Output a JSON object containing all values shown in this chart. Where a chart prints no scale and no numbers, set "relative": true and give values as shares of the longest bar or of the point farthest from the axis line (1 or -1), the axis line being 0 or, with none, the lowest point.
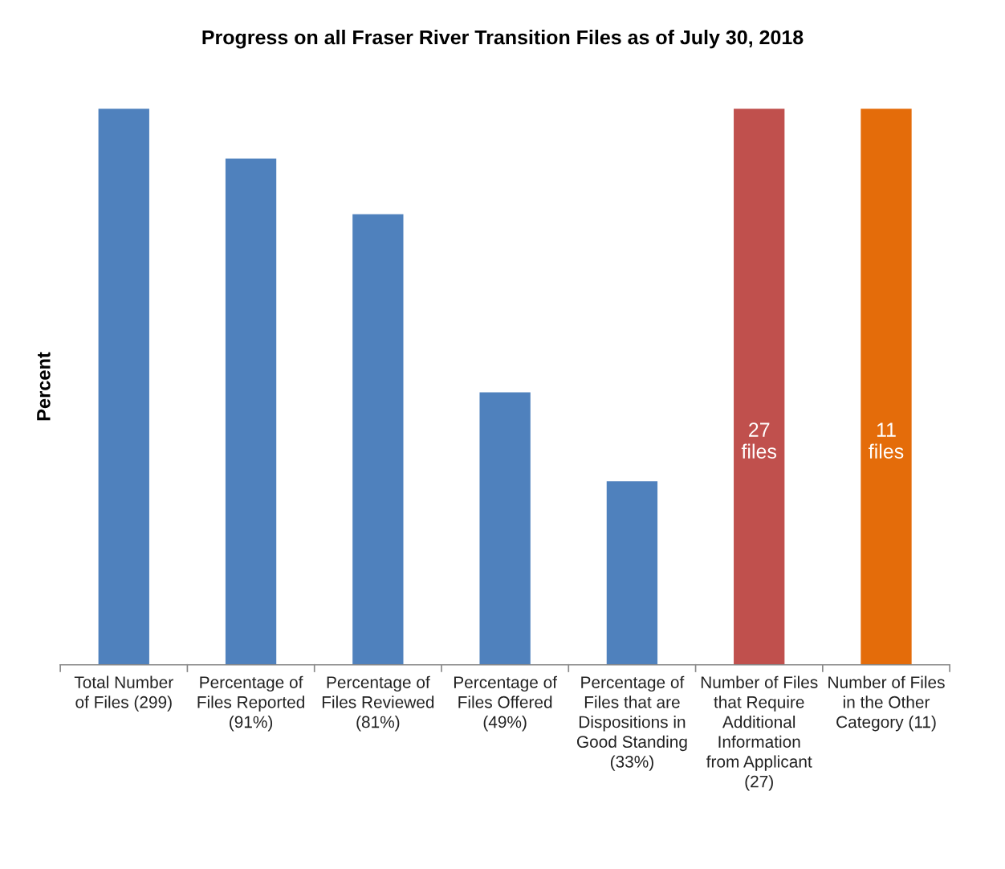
{
  "chart_data": {
    "type": "bar",
    "title": "Progress on all Fraser River Transition Files as of July 30, 2018",
    "ylabel": "Percent",
    "categories": [
      "Total Number\nof Files (299)",
      "Percentage of\nFiles Reported\n(91%)",
      "Percentage of\nFiles Reviewed\n(81%)",
      "Percentage of\nFiles Offered\n(49%)",
      "Percentage of\nFiles that are\nDispositions in\nGood Standing\n(33%)",
      "Number of Files\nthat Require\nAdditional\nInformation\nfrom Applicant\n(27)",
      "Number of Files\nin the Other\nCategory (11)"
    ],
    "values": [
      1,
      0.91,
      0.81,
      0.49,
      0.33,
      1,
      1
    ],
    "colors": [
      "#4f81bd",
      "#4f81bd",
      "#4f81bd",
      "#4f81bd",
      "#4f81bd",
      "#c0504d",
      "#e46c0a"
    ],
    "annotations": [
      "27\nfiles",
      "11\nfiles"
    ],
    "relative": true,
    "grid": false,
    "legend": false
  }
}
